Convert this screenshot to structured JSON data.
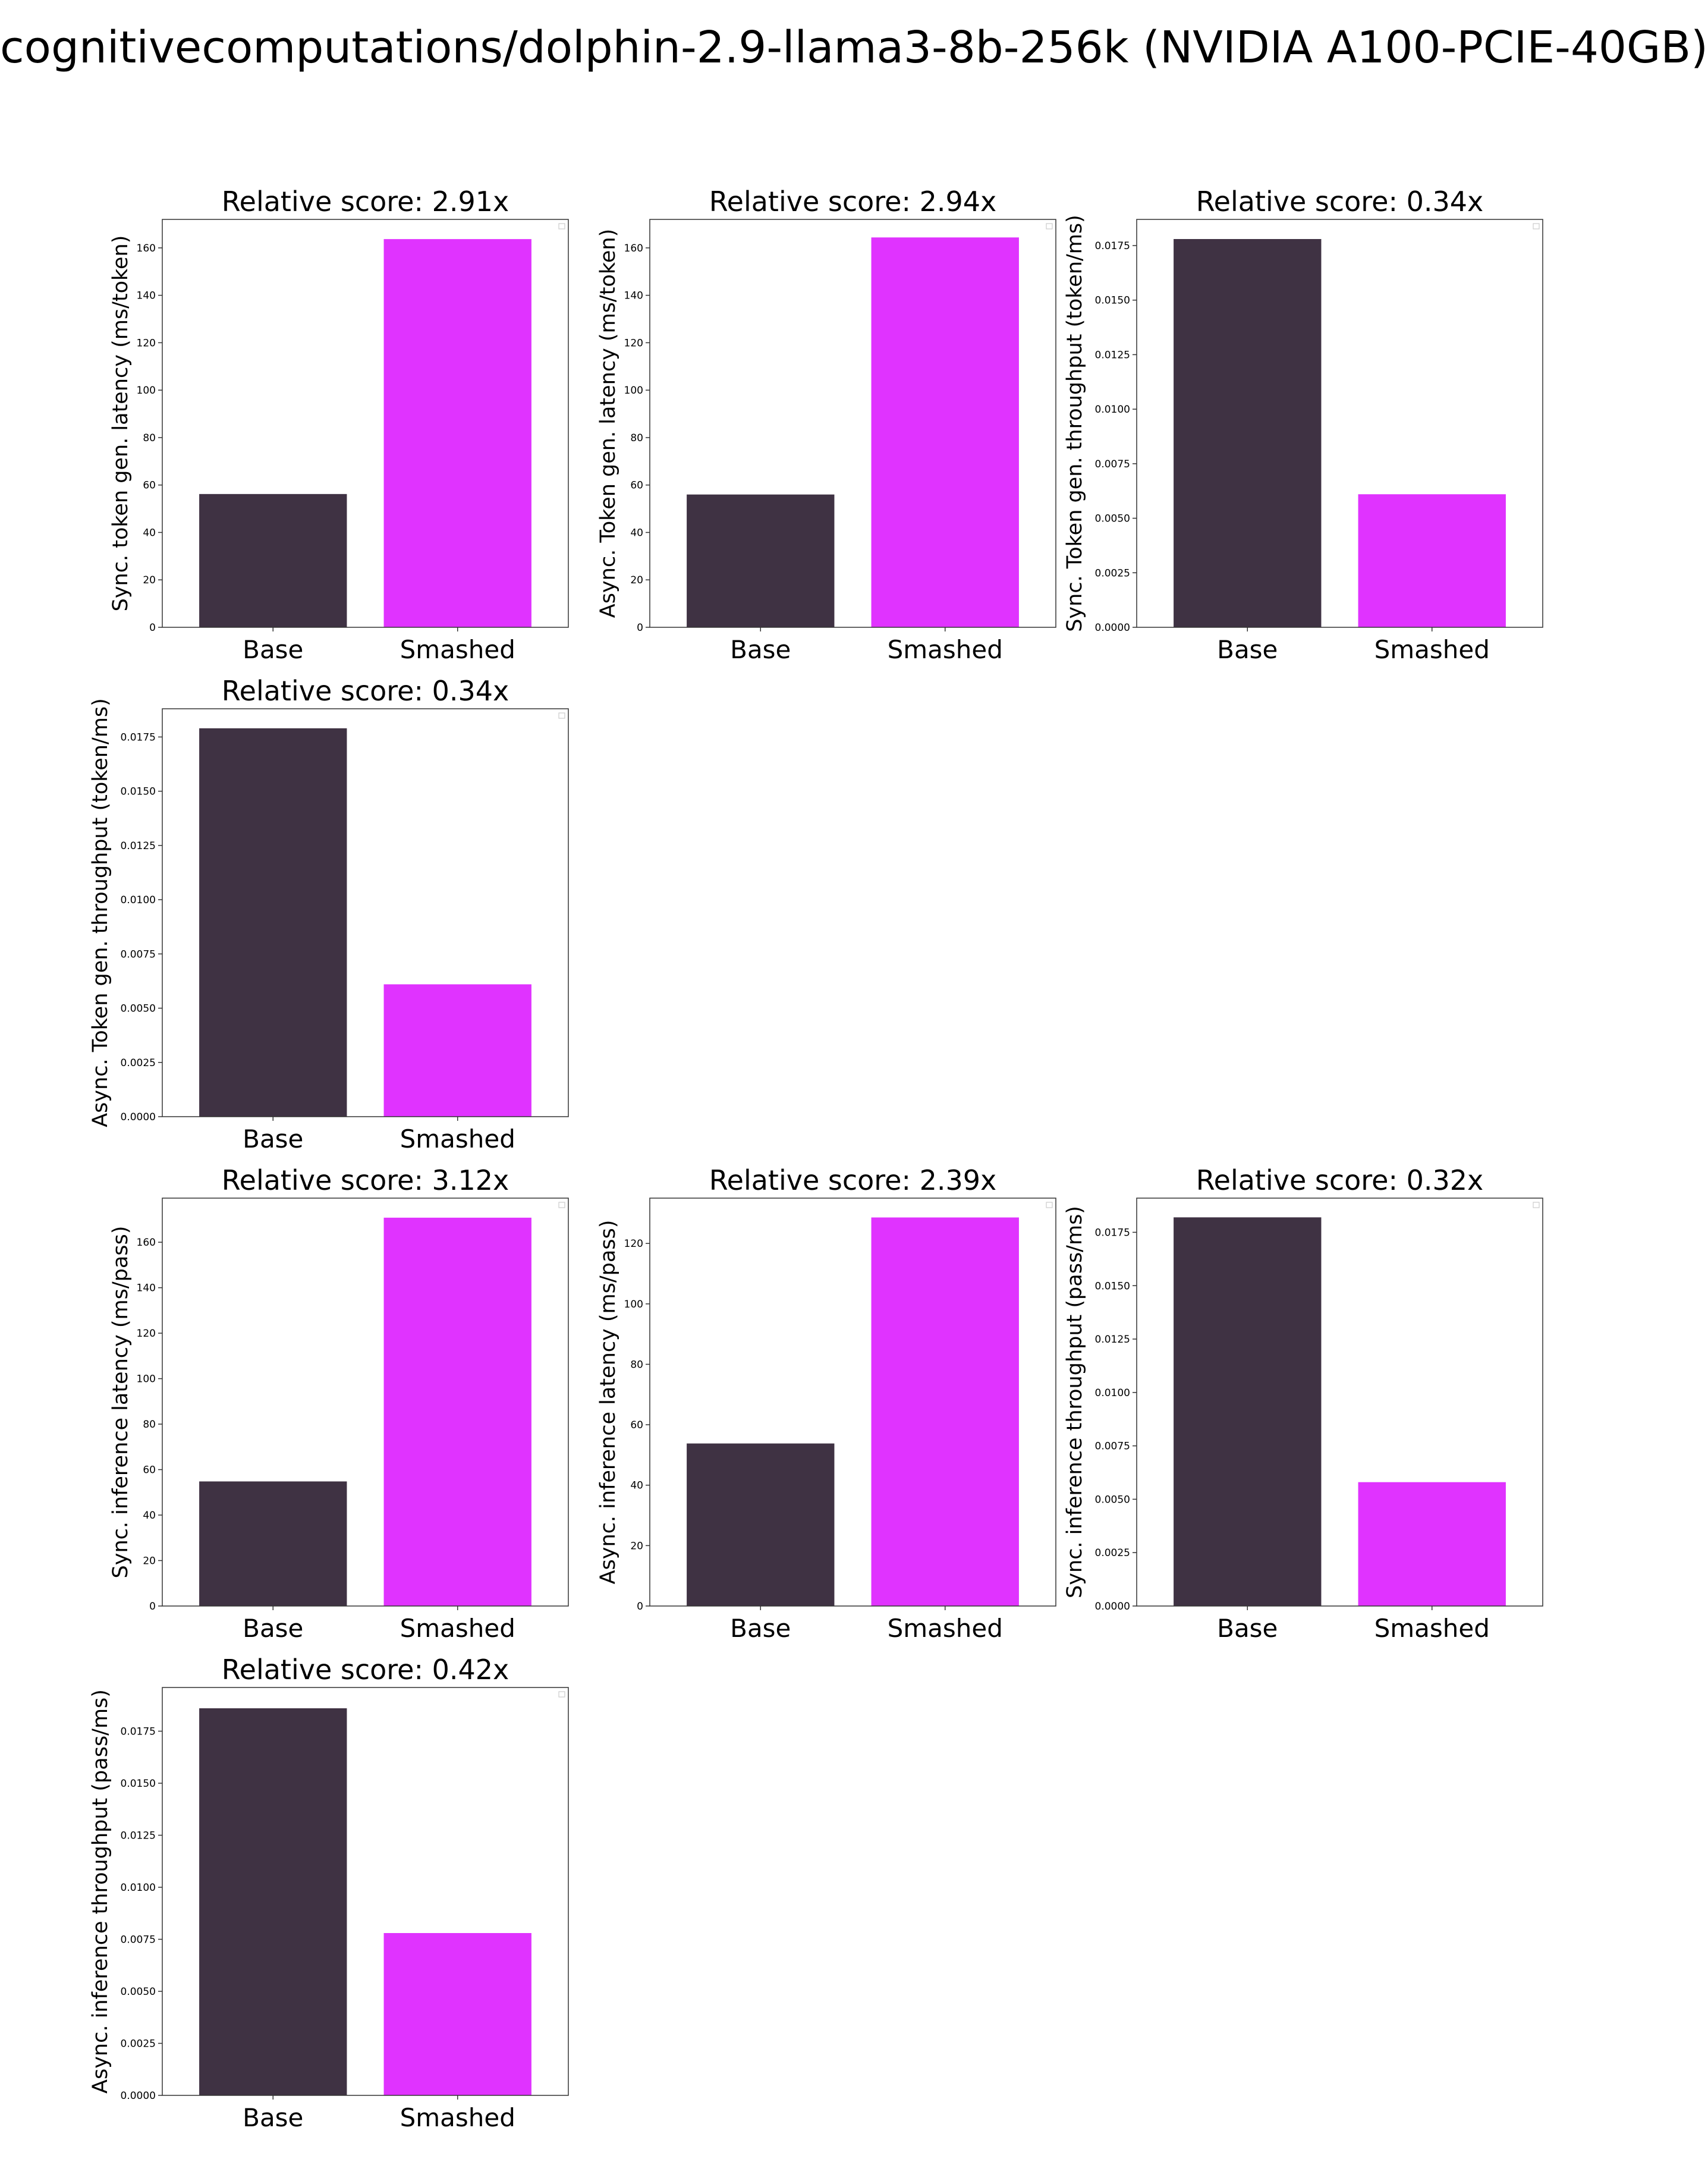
{
  "figure": {
    "title": "cognitivecomputations/dolphin-2.9-llama3-8b-256k (NVIDIA A100-PCIE-40GB)"
  },
  "colors": {
    "base": "#3f3243",
    "smashed": "#e033ff",
    "axis": "#333333",
    "background": "#ffffff"
  },
  "chart_data": [
    {
      "type": "bar",
      "title": "Relative score: 2.91x",
      "ylabel": "Sync. token gen. latency (ms/token)",
      "categories": [
        "Base",
        "Smashed"
      ],
      "values": [
        56.2,
        163.7
      ],
      "ylim": [
        0,
        172
      ],
      "yticks": [
        0,
        20,
        40,
        60,
        80,
        100,
        120,
        140,
        160
      ],
      "ytick_labels": [
        "0",
        "20",
        "40",
        "60",
        "80",
        "100",
        "120",
        "140",
        "160"
      ],
      "grid": false
    },
    {
      "type": "bar",
      "title": "Relative score: 2.94x",
      "ylabel": "Async. Token gen. latency (ms/token)",
      "categories": [
        "Base",
        "Smashed"
      ],
      "values": [
        56.0,
        164.4
      ],
      "ylim": [
        0,
        172
      ],
      "yticks": [
        0,
        20,
        40,
        60,
        80,
        100,
        120,
        140,
        160
      ],
      "ytick_labels": [
        "0",
        "20",
        "40",
        "60",
        "80",
        "100",
        "120",
        "140",
        "160"
      ],
      "grid": false
    },
    {
      "type": "bar",
      "title": "Relative score: 0.34x",
      "ylabel": "Sync. Token gen. throughput (token/ms)",
      "categories": [
        "Base",
        "Smashed"
      ],
      "values": [
        0.0178,
        0.0061
      ],
      "ylim": [
        0,
        0.0187
      ],
      "yticks": [
        0,
        0.0025,
        0.005,
        0.0075,
        0.01,
        0.0125,
        0.015,
        0.0175
      ],
      "ytick_labels": [
        "0.0000",
        "0.0025",
        "0.0050",
        "0.0075",
        "0.0100",
        "0.0125",
        "0.0150",
        "0.0175"
      ],
      "grid": false
    },
    {
      "type": "bar",
      "title": "Relative score: 0.34x",
      "ylabel": "Async. Token gen. throughput (token/ms)",
      "categories": [
        "Base",
        "Smashed"
      ],
      "values": [
        0.0179,
        0.0061
      ],
      "ylim": [
        0,
        0.0188
      ],
      "yticks": [
        0,
        0.0025,
        0.005,
        0.0075,
        0.01,
        0.0125,
        0.015,
        0.0175
      ],
      "ytick_labels": [
        "0.0000",
        "0.0025",
        "0.0050",
        "0.0075",
        "0.0100",
        "0.0125",
        "0.0150",
        "0.0175"
      ],
      "grid": false
    },
    {
      "type": "bar",
      "title": "Relative score: 3.12x",
      "ylabel": "Sync. inference latency (ms/pass)",
      "categories": [
        "Base",
        "Smashed"
      ],
      "values": [
        54.8,
        170.8
      ],
      "ylim": [
        0,
        179.4
      ],
      "yticks": [
        0,
        20,
        40,
        60,
        80,
        100,
        120,
        140,
        160
      ],
      "ytick_labels": [
        "0",
        "20",
        "40",
        "60",
        "80",
        "100",
        "120",
        "140",
        "160"
      ],
      "grid": false
    },
    {
      "type": "bar",
      "title": "Relative score: 2.39x",
      "ylabel": "Async. inference latency (ms/pass)",
      "categories": [
        "Base",
        "Smashed"
      ],
      "values": [
        53.8,
        128.6
      ],
      "ylim": [
        0,
        135
      ],
      "yticks": [
        0,
        20,
        40,
        60,
        80,
        100,
        120
      ],
      "ytick_labels": [
        "0",
        "20",
        "40",
        "60",
        "80",
        "100",
        "120"
      ],
      "grid": false
    },
    {
      "type": "bar",
      "title": "Relative score: 0.32x",
      "ylabel": "Sync. inference throughput (pass/ms)",
      "categories": [
        "Base",
        "Smashed"
      ],
      "values": [
        0.0182,
        0.0058
      ],
      "ylim": [
        0,
        0.0191
      ],
      "yticks": [
        0,
        0.0025,
        0.005,
        0.0075,
        0.01,
        0.0125,
        0.015,
        0.0175
      ],
      "ytick_labels": [
        "0.0000",
        "0.0025",
        "0.0050",
        "0.0075",
        "0.0100",
        "0.0125",
        "0.0150",
        "0.0175"
      ],
      "grid": false
    },
    {
      "type": "bar",
      "title": "Relative score: 0.42x",
      "ylabel": "Async. inference throughput (pass/ms)",
      "categories": [
        "Base",
        "Smashed"
      ],
      "values": [
        0.0186,
        0.0078
      ],
      "ylim": [
        0,
        0.0196
      ],
      "yticks": [
        0,
        0.0025,
        0.005,
        0.0075,
        0.01,
        0.0125,
        0.015,
        0.0175
      ],
      "ytick_labels": [
        "0.0000",
        "0.0025",
        "0.0050",
        "0.0075",
        "0.0100",
        "0.0125",
        "0.0150",
        "0.0175"
      ],
      "grid": false
    }
  ]
}
